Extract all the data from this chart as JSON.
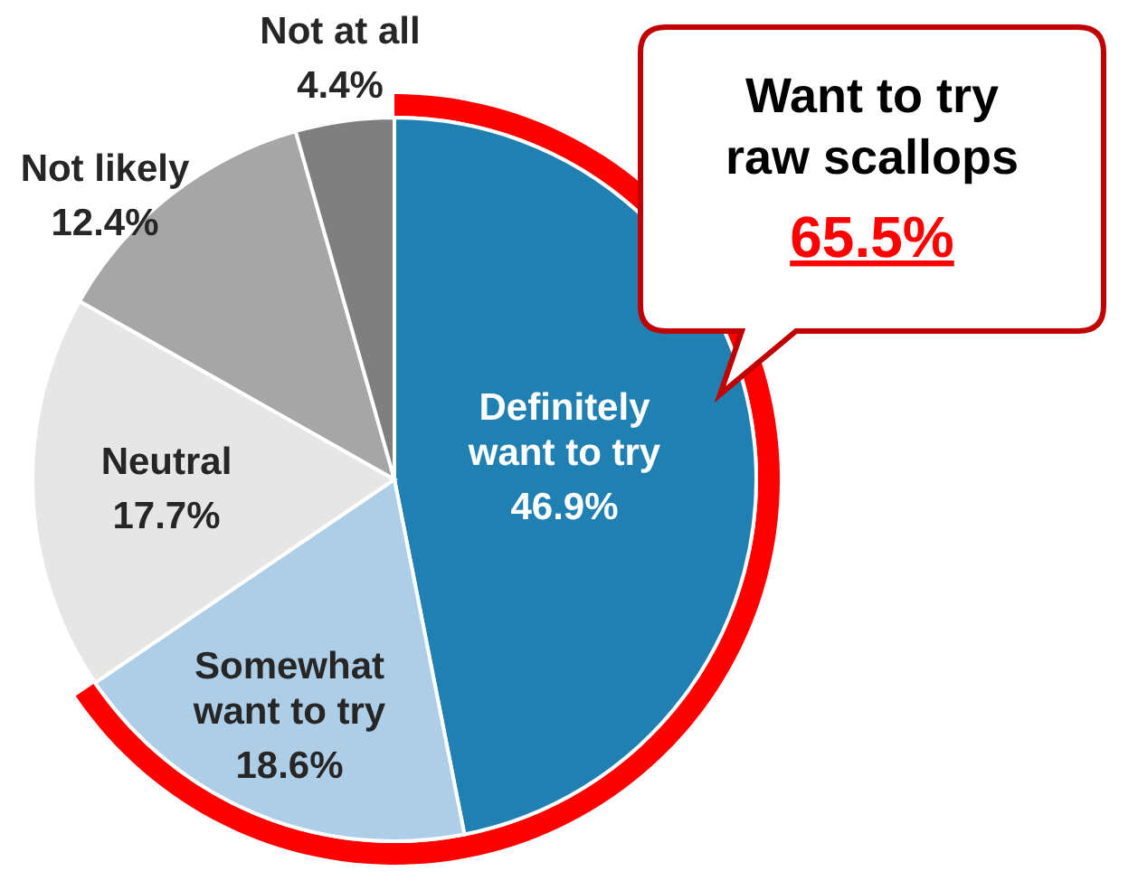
{
  "chart_data": {
    "type": "pie",
    "categories": [
      "Definitely want to try",
      "Somewhat want to try",
      "Neutral",
      "Not likely",
      "Not at all"
    ],
    "values": [
      46.9,
      18.6,
      17.7,
      12.4,
      4.4
    ],
    "value_labels": [
      "46.9%",
      "18.6%",
      "17.7%",
      "12.4%",
      "4.4%"
    ],
    "colors": [
      "#1f80b1",
      "#aecde7",
      "#e6e6e6",
      "#a6a6a6",
      "#7f7f7f"
    ],
    "annotations": [
      "Want to try raw scallops",
      "65.5%"
    ]
  }
}
